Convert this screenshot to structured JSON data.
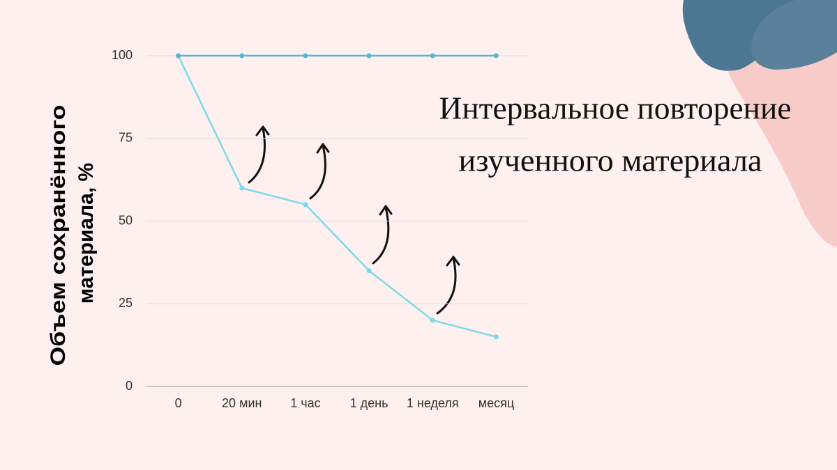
{
  "chart_data": {
    "type": "line",
    "title": [
      "Интервальное повторение",
      "изученного материала"
    ],
    "y_label": [
      "Объем сохранённого",
      "материала, %"
    ],
    "categories": [
      "0",
      "20 мин",
      "1 час",
      "1 день",
      "1 неделя",
      "месяц"
    ],
    "series": [
      {
        "color": "#5ab4d6",
        "values": [
          100,
          100,
          100,
          100,
          100,
          100
        ]
      },
      {
        "color": "#7fdae6",
        "values": [
          100,
          60,
          55,
          35,
          20,
          15
        ]
      }
    ],
    "ylim": [
      0,
      100
    ],
    "yticks": [
      0,
      25,
      50,
      75,
      100
    ],
    "grid": true
  }
}
